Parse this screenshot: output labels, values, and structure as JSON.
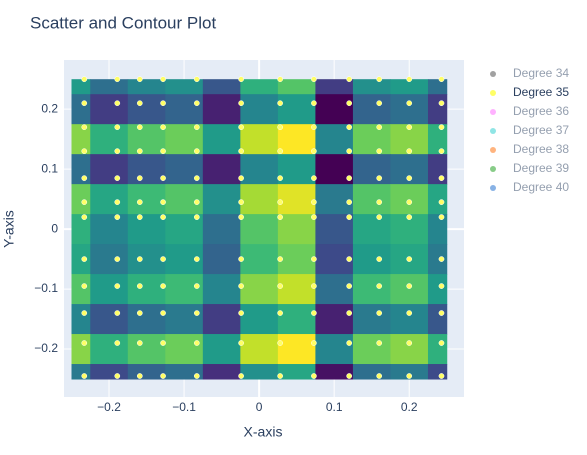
{
  "chart_data": {
    "type": "scatter",
    "title": "Scatter and Contour Plot",
    "x_label": "X-axis",
    "y_label": "Y-axis",
    "xlim": [
      -0.26,
      0.273
    ],
    "ylim": [
      -0.28,
      0.282
    ],
    "xticks": [
      {
        "value": -0.2,
        "label": "−0.2"
      },
      {
        "value": -0.1,
        "label": "−0.1"
      },
      0,
      0.1,
      0.2
    ],
    "yticks": [
      {
        "value": -0.2,
        "label": "−0.2"
      },
      {
        "value": -0.1,
        "label": "−0.1"
      },
      0,
      0.1,
      0.2
    ],
    "grid": true,
    "legend": "right",
    "contour": {
      "colorscale": "Viridis",
      "x": [
        -0.25,
        -0.2,
        -0.15,
        -0.1,
        -0.05,
        0,
        0.05,
        0.1,
        0.15,
        0.2,
        0.25
      ],
      "y": [
        0.25,
        0.2,
        0.15,
        0.1,
        0.05,
        0,
        -0.05,
        -0.1,
        -0.15,
        -0.2,
        -0.25
      ],
      "z": [
        [
          0.8,
          0.6,
          0.7,
          0.75,
          0.5,
          0.9,
          1.0,
          0.4,
          0.75,
          0.8,
          0.6
        ],
        [
          0.6,
          0.4,
          0.5,
          0.55,
          0.3,
          0.7,
          0.8,
          0.2,
          0.55,
          0.6,
          0.4
        ],
        [
          1.1,
          0.9,
          1.0,
          1.05,
          0.8,
          1.2,
          1.3,
          0.7,
          1.05,
          1.1,
          0.9
        ],
        [
          0.6,
          0.4,
          0.5,
          0.55,
          0.3,
          0.7,
          0.8,
          0.2,
          0.55,
          0.6,
          0.4
        ],
        [
          1.05,
          0.85,
          0.95,
          1.0,
          0.75,
          1.15,
          1.25,
          0.65,
          1.0,
          1.05,
          0.85
        ],
        [
          0.9,
          0.7,
          0.8,
          0.85,
          0.6,
          1.0,
          1.1,
          0.5,
          0.85,
          0.9,
          0.7
        ],
        [
          0.85,
          0.65,
          0.75,
          0.8,
          0.55,
          0.95,
          1.05,
          0.45,
          0.8,
          0.85,
          0.65
        ],
        [
          1.0,
          0.8,
          0.9,
          0.95,
          0.7,
          1.1,
          1.2,
          0.6,
          0.95,
          1.0,
          0.8
        ],
        [
          0.7,
          0.5,
          0.6,
          0.65,
          0.4,
          0.8,
          0.9,
          0.3,
          0.65,
          0.7,
          0.5
        ],
        [
          1.1,
          0.9,
          1.0,
          1.05,
          0.8,
          1.2,
          1.3,
          0.7,
          1.05,
          1.1,
          0.9
        ],
        [
          0.65,
          0.45,
          0.55,
          0.6,
          0.35,
          0.75,
          0.85,
          0.25,
          0.6,
          0.65,
          0.45
        ]
      ]
    },
    "series": [
      {
        "name": "Degree 34",
        "color": "#444444",
        "visible": "legendonly"
      },
      {
        "name": "Degree 35",
        "color": "#ffff66",
        "visible": true,
        "x": [
          -0.233,
          -0.189,
          -0.159,
          -0.128,
          -0.083,
          -0.024,
          0.028,
          0.073,
          0.12,
          0.16,
          0.2,
          0.243,
          -0.233,
          -0.189,
          -0.159,
          -0.128,
          -0.083,
          -0.024,
          0.028,
          0.073,
          0.12,
          0.16,
          0.2,
          0.243,
          -0.233,
          -0.189,
          -0.159,
          -0.128,
          -0.083,
          -0.024,
          0.028,
          0.073,
          0.12,
          0.16,
          0.2,
          0.243,
          -0.233,
          -0.189,
          -0.159,
          -0.128,
          -0.083,
          -0.024,
          0.028,
          0.073,
          0.12,
          0.16,
          0.2,
          0.243,
          -0.233,
          -0.189,
          -0.159,
          -0.128,
          -0.083,
          -0.024,
          0.028,
          0.073,
          0.12,
          0.16,
          0.2,
          0.243,
          -0.233,
          -0.189,
          -0.159,
          -0.128,
          -0.083,
          -0.024,
          0.028,
          0.073,
          0.12,
          0.16,
          0.2,
          0.243,
          -0.233,
          -0.189,
          -0.159,
          -0.128,
          -0.083,
          -0.024,
          0.028,
          0.073,
          0.12,
          0.16,
          0.2,
          0.243,
          -0.233,
          -0.189,
          -0.159,
          -0.128,
          -0.083,
          -0.024,
          0.028,
          0.073,
          0.12,
          0.16,
          0.2,
          0.243,
          -0.233,
          -0.189,
          -0.159,
          -0.128,
          -0.083,
          -0.024,
          0.028,
          0.073,
          0.12,
          0.16,
          0.2,
          0.243,
          -0.233,
          -0.189,
          -0.159,
          -0.128,
          -0.083,
          -0.024,
          0.028,
          0.073,
          0.12,
          0.16,
          0.2,
          0.243,
          -0.233,
          -0.189,
          -0.159,
          -0.128,
          -0.083,
          -0.024,
          0.028,
          0.073,
          0.12,
          0.16,
          0.2,
          0.243,
          -0.233,
          -0.189,
          -0.159,
          -0.128,
          -0.083,
          -0.024,
          0.028,
          0.073,
          0.12,
          0.16,
          0.2,
          0.243
        ],
        "values": [
          0.25,
          0.25,
          0.25,
          0.25,
          0.25,
          0.25,
          0.25,
          0.25,
          0.25,
          0.25,
          0.25,
          0.25,
          0.21,
          0.21,
          0.21,
          0.21,
          0.21,
          0.21,
          0.21,
          0.21,
          0.21,
          0.21,
          0.21,
          0.21,
          0.17,
          0.17,
          0.17,
          0.17,
          0.17,
          0.17,
          0.17,
          0.17,
          0.17,
          0.17,
          0.17,
          0.17,
          0.13,
          0.13,
          0.13,
          0.13,
          0.13,
          0.13,
          0.13,
          0.13,
          0.13,
          0.13,
          0.13,
          0.13,
          0.085,
          0.085,
          0.085,
          0.085,
          0.085,
          0.085,
          0.085,
          0.085,
          0.085,
          0.085,
          0.085,
          0.085,
          0.045,
          0.045,
          0.045,
          0.045,
          0.045,
          0.045,
          0.045,
          0.045,
          0.045,
          0.045,
          0.045,
          0.045,
          0.02,
          0.02,
          0.02,
          0.02,
          0.02,
          0.02,
          0.02,
          0.02,
          0.02,
          0.02,
          0.02,
          0.02,
          -0.05,
          -0.05,
          -0.05,
          -0.05,
          -0.05,
          -0.05,
          -0.05,
          -0.05,
          -0.05,
          -0.05,
          -0.05,
          -0.05,
          -0.095,
          -0.095,
          -0.095,
          -0.095,
          -0.095,
          -0.095,
          -0.095,
          -0.095,
          -0.095,
          -0.095,
          -0.095,
          -0.095,
          -0.14,
          -0.14,
          -0.14,
          -0.14,
          -0.14,
          -0.14,
          -0.14,
          -0.14,
          -0.14,
          -0.14,
          -0.14,
          -0.14,
          -0.19,
          -0.19,
          -0.19,
          -0.19,
          -0.19,
          -0.19,
          -0.19,
          -0.19,
          -0.19,
          -0.19,
          -0.19,
          -0.19,
          -0.245,
          -0.245,
          -0.245,
          -0.245,
          -0.245,
          -0.245,
          -0.245,
          -0.245,
          -0.245,
          -0.245,
          -0.245,
          -0.245
        ]
      },
      {
        "name": "Degree 36",
        "color": "#ff66ff",
        "visible": "legendonly"
      },
      {
        "name": "Degree 37",
        "color": "#22cccc",
        "visible": "legendonly"
      },
      {
        "name": "Degree 38",
        "color": "#ff6a00",
        "visible": "legendonly"
      },
      {
        "name": "Degree 39",
        "color": "#119911",
        "visible": "legendonly"
      },
      {
        "name": "Degree 40",
        "color": "#1166cc",
        "visible": "legendonly"
      }
    ]
  }
}
